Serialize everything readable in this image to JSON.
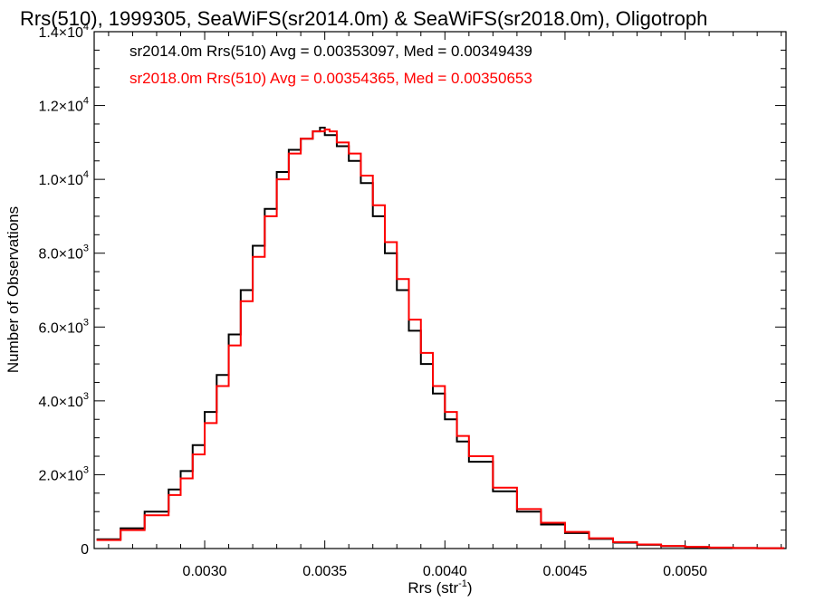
{
  "chart_data": {
    "type": "line",
    "title": "Rrs(510), 1999305, SeaWiFS(sr2014.0m) & SeaWiFS(sr2018.0m), Oligotroph",
    "xlabel_main": "Rrs (str",
    "xlabel_sup": "-1",
    "xlabel_end": ")",
    "ylabel": "Number of Observations",
    "xlim": [
      0.00254,
      0.00542
    ],
    "ylim": [
      0,
      14000
    ],
    "x_ticks": [
      0.003,
      0.0035,
      0.004,
      0.0045,
      0.005
    ],
    "x_tick_labels": [
      "0.0030",
      "0.0035",
      "0.0040",
      "0.0045",
      "0.0050"
    ],
    "y_ticks": [
      0,
      2000,
      4000,
      6000,
      8000,
      10000,
      12000,
      14000
    ],
    "y_tick_labels": [
      {
        "mant": "0",
        "exp": ""
      },
      {
        "mant": "2.0×10",
        "exp": "3"
      },
      {
        "mant": "4.0×10",
        "exp": "3"
      },
      {
        "mant": "6.0×10",
        "exp": "3"
      },
      {
        "mant": "8.0×10",
        "exp": "3"
      },
      {
        "mant": "1.0×10",
        "exp": "4"
      },
      {
        "mant": "1.2×10",
        "exp": "4"
      },
      {
        "mant": "1.4×10",
        "exp": "4"
      }
    ],
    "grid": false,
    "legend_placement": "top-left",
    "series": [
      {
        "name": "sr2014.0m",
        "label": "sr2014.0m Rrs(510) Avg = 0.00353097, Med = 0.00349439",
        "color": "#000000",
        "style": "histogram-step",
        "x": [
          0.00255,
          0.00265,
          0.00275,
          0.00285,
          0.0029,
          0.00295,
          0.003,
          0.00305,
          0.0031,
          0.00315,
          0.0032,
          0.00325,
          0.0033,
          0.00335,
          0.0034,
          0.00345,
          0.00348,
          0.0035,
          0.00355,
          0.0036,
          0.00365,
          0.0037,
          0.00375,
          0.0038,
          0.00385,
          0.0039,
          0.00395,
          0.004,
          0.00405,
          0.0041,
          0.0042,
          0.0043,
          0.0044,
          0.0045,
          0.0046,
          0.0047,
          0.0048,
          0.0049,
          0.005,
          0.0051,
          0.0052,
          0.0053,
          0.00541
        ],
        "y": [
          250,
          550,
          1000,
          1600,
          2100,
          2800,
          3700,
          4700,
          5800,
          7000,
          8200,
          9200,
          10200,
          10800,
          11100,
          11300,
          11400,
          11200,
          10900,
          10500,
          9900,
          9000,
          8000,
          7000,
          5900,
          5000,
          4200,
          3500,
          2900,
          2350,
          1550,
          1000,
          650,
          420,
          260,
          160,
          100,
          65,
          40,
          25,
          15,
          8,
          5
        ]
      },
      {
        "name": "sr2018.0m",
        "label": "sr2018.0m Rrs(510) Avg = 0.00354365, Med = 0.00350653",
        "color": "#ff0000",
        "style": "histogram-step",
        "x": [
          0.00255,
          0.00265,
          0.00275,
          0.00285,
          0.0029,
          0.00295,
          0.003,
          0.00305,
          0.0031,
          0.00315,
          0.0032,
          0.00325,
          0.0033,
          0.00335,
          0.0034,
          0.00345,
          0.0035,
          0.00352,
          0.00355,
          0.0036,
          0.00365,
          0.0037,
          0.00375,
          0.0038,
          0.00385,
          0.0039,
          0.00395,
          0.004,
          0.00405,
          0.0041,
          0.0042,
          0.0043,
          0.0044,
          0.0045,
          0.0046,
          0.0047,
          0.0048,
          0.0049,
          0.005,
          0.0051,
          0.0052,
          0.0053,
          0.00541
        ],
        "y": [
          230,
          500,
          900,
          1450,
          1900,
          2550,
          3400,
          4400,
          5500,
          6700,
          7900,
          9000,
          10000,
          10700,
          11100,
          11300,
          11350,
          11300,
          11000,
          10700,
          10100,
          9300,
          8300,
          7300,
          6200,
          5300,
          4400,
          3700,
          3050,
          2500,
          1650,
          1070,
          700,
          450,
          280,
          175,
          110,
          70,
          45,
          28,
          16,
          9,
          5
        ]
      }
    ]
  }
}
